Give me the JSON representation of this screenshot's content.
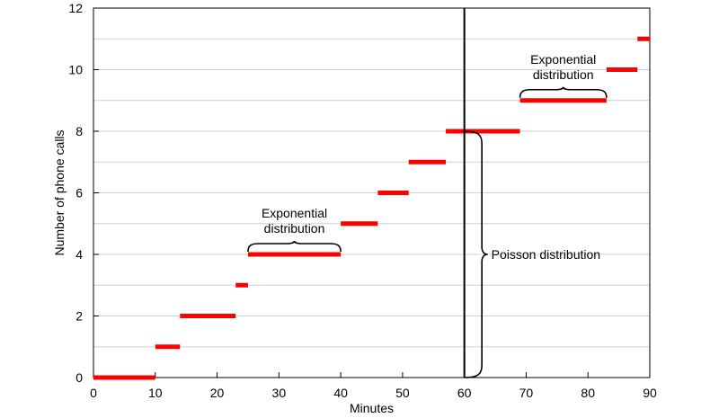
{
  "chart_data": {
    "type": "step",
    "title": "",
    "xlabel": "Minutes",
    "ylabel": "Number of phone calls",
    "xlim": [
      0,
      90
    ],
    "ylim": [
      0,
      12
    ],
    "xticks": [
      0,
      10,
      20,
      30,
      40,
      50,
      60,
      70,
      80,
      90
    ],
    "yticks": [
      0,
      2,
      4,
      6,
      8,
      10,
      12
    ],
    "grid": true,
    "series": [
      {
        "color": "#ff0000",
        "segments": [
          {
            "x_start": 0,
            "x_end": 10,
            "y": 0
          },
          {
            "x_start": 10,
            "x_end": 14,
            "y": 1
          },
          {
            "x_start": 14,
            "x_end": 23,
            "y": 2
          },
          {
            "x_start": 23,
            "x_end": 25,
            "y": 3
          },
          {
            "x_start": 25,
            "x_end": 40,
            "y": 4
          },
          {
            "x_start": 40,
            "x_end": 46,
            "y": 5
          },
          {
            "x_start": 46,
            "x_end": 51,
            "y": 6
          },
          {
            "x_start": 51,
            "x_end": 57,
            "y": 7
          },
          {
            "x_start": 57,
            "x_end": 69,
            "y": 8
          },
          {
            "x_start": 69,
            "x_end": 83,
            "y": 9
          },
          {
            "x_start": 83,
            "x_end": 88,
            "y": 10
          },
          {
            "x_start": 88,
            "x_end": 90,
            "y": 11
          }
        ]
      }
    ],
    "reference_line": {
      "x": 60,
      "color": "#000000"
    },
    "annotations": {
      "exp1": {
        "line1": "Exponential",
        "line2": "distribution",
        "x_start": 25,
        "x_end": 40,
        "y": 4
      },
      "exp2": {
        "line1": "Exponential",
        "line2": "distribution",
        "x_start": 69,
        "x_end": 83,
        "y": 9
      },
      "poisson": {
        "label": "Poisson distribution",
        "x": 60,
        "y_start": 0,
        "y_end": 8
      }
    }
  }
}
